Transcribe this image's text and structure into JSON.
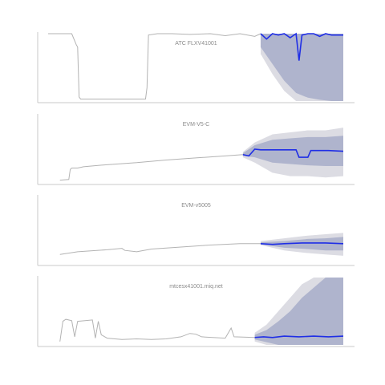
{
  "colors": {
    "history": "#b3b3b3",
    "forecast": "#1f2ee6",
    "band_outer": "#dcdce3",
    "band_inner": "#afb4cd",
    "axis": "#c8c8c8",
    "title": "#8a8a8a"
  },
  "chart_data": [
    {
      "type": "line",
      "title": "ATC FLXV41001",
      "xlabel": "",
      "ylabel": "",
      "x_range": [
        0,
        1
      ],
      "ylim": [
        0,
        1
      ],
      "grid": false,
      "history": [
        [
          0.0,
          1.0
        ],
        [
          0.08,
          1.0
        ],
        [
          0.095,
          0.84
        ],
        [
          0.1,
          0.8
        ],
        [
          0.105,
          0.06
        ],
        [
          0.11,
          0.03
        ],
        [
          0.15,
          0.03
        ],
        [
          0.2,
          0.03
        ],
        [
          0.25,
          0.03
        ],
        [
          0.3,
          0.03
        ],
        [
          0.33,
          0.03
        ],
        [
          0.335,
          0.2
        ],
        [
          0.34,
          0.98
        ],
        [
          0.37,
          1.0
        ],
        [
          0.42,
          1.0
        ],
        [
          0.48,
          0.99
        ],
        [
          0.55,
          1.0
        ],
        [
          0.6,
          0.97
        ],
        [
          0.65,
          1.0
        ],
        [
          0.7,
          0.96
        ],
        [
          0.72,
          1.0
        ]
      ],
      "forecast": [
        [
          0.72,
          1.0
        ],
        [
          0.74,
          0.92
        ],
        [
          0.76,
          1.0
        ],
        [
          0.78,
          0.98
        ],
        [
          0.8,
          1.0
        ],
        [
          0.82,
          0.94
        ],
        [
          0.84,
          1.0
        ],
        [
          0.85,
          0.6
        ],
        [
          0.86,
          0.98
        ],
        [
          0.88,
          1.0
        ],
        [
          0.9,
          1.0
        ],
        [
          0.92,
          0.96
        ],
        [
          0.94,
          1.0
        ],
        [
          0.96,
          0.98
        ],
        [
          1.0,
          0.98
        ]
      ],
      "band_outer": {
        "x": [
          0.72,
          0.76,
          0.8,
          0.84,
          0.88,
          0.92,
          0.96,
          1.0
        ],
        "lower": [
          0.7,
          0.4,
          0.15,
          0.0,
          0.0,
          0.0,
          0.0,
          0.0
        ],
        "upper": [
          1.0,
          1.0,
          1.0,
          1.0,
          1.0,
          1.0,
          1.0,
          1.0
        ]
      },
      "band_inner": {
        "x": [
          0.72,
          0.76,
          0.8,
          0.84,
          0.88,
          0.92,
          0.96,
          1.0
        ],
        "lower": [
          0.8,
          0.55,
          0.3,
          0.12,
          0.05,
          0.02,
          0.0,
          0.0
        ],
        "upper": [
          1.0,
          1.0,
          1.0,
          1.0,
          1.0,
          1.0,
          1.0,
          1.0
        ]
      }
    },
    {
      "type": "line",
      "title": "EVM-V5-C",
      "xlabel": "",
      "ylabel": "",
      "x_range": [
        0,
        1
      ],
      "ylim": [
        0,
        1
      ],
      "grid": false,
      "history": [
        [
          0.04,
          0.04
        ],
        [
          0.07,
          0.05
        ],
        [
          0.075,
          0.2
        ],
        [
          0.08,
          0.22
        ],
        [
          0.1,
          0.22
        ],
        [
          0.12,
          0.24
        ],
        [
          0.2,
          0.27
        ],
        [
          0.3,
          0.3
        ],
        [
          0.4,
          0.34
        ],
        [
          0.5,
          0.37
        ],
        [
          0.6,
          0.4
        ],
        [
          0.66,
          0.42
        ]
      ],
      "forecast": [
        [
          0.66,
          0.42
        ],
        [
          0.68,
          0.4
        ],
        [
          0.7,
          0.5
        ],
        [
          0.72,
          0.49
        ],
        [
          0.8,
          0.49
        ],
        [
          0.84,
          0.49
        ],
        [
          0.85,
          0.38
        ],
        [
          0.88,
          0.38
        ],
        [
          0.89,
          0.48
        ],
        [
          0.95,
          0.48
        ],
        [
          1.0,
          0.47
        ]
      ],
      "band_outer": {
        "x": [
          0.66,
          0.7,
          0.76,
          0.82,
          0.88,
          0.94,
          1.0
        ],
        "lower": [
          0.38,
          0.3,
          0.15,
          0.1,
          0.1,
          0.08,
          0.1
        ],
        "upper": [
          0.46,
          0.6,
          0.72,
          0.75,
          0.78,
          0.78,
          0.82
        ]
      },
      "band_inner": {
        "x": [
          0.66,
          0.7,
          0.76,
          0.82,
          0.88,
          0.94,
          1.0
        ],
        "lower": [
          0.4,
          0.38,
          0.3,
          0.28,
          0.26,
          0.25,
          0.25
        ],
        "upper": [
          0.44,
          0.56,
          0.64,
          0.66,
          0.68,
          0.68,
          0.7
        ]
      }
    },
    {
      "type": "line",
      "title": "EVM-v5005",
      "xlabel": "",
      "ylabel": "",
      "x_range": [
        0,
        1
      ],
      "ylim": [
        0,
        1
      ],
      "grid": false,
      "history": [
        [
          0.04,
          0.14
        ],
        [
          0.1,
          0.18
        ],
        [
          0.2,
          0.21
        ],
        [
          0.25,
          0.23
        ],
        [
          0.26,
          0.2
        ],
        [
          0.3,
          0.18
        ],
        [
          0.35,
          0.22
        ],
        [
          0.45,
          0.25
        ],
        [
          0.55,
          0.28
        ],
        [
          0.65,
          0.3
        ],
        [
          0.72,
          0.3
        ]
      ],
      "forecast": [
        [
          0.72,
          0.3
        ],
        [
          0.76,
          0.29
        ],
        [
          0.8,
          0.3
        ],
        [
          0.86,
          0.31
        ],
        [
          0.9,
          0.31
        ],
        [
          0.94,
          0.31
        ],
        [
          1.0,
          0.3
        ]
      ],
      "band_outer": {
        "x": [
          0.72,
          0.8,
          0.88,
          0.94,
          1.0
        ],
        "lower": [
          0.28,
          0.2,
          0.16,
          0.14,
          0.12
        ],
        "upper": [
          0.34,
          0.38,
          0.42,
          0.44,
          0.46
        ]
      },
      "band_inner": {
        "x": [
          0.72,
          0.8,
          0.88,
          0.94,
          1.0
        ],
        "lower": [
          0.29,
          0.24,
          0.22,
          0.2,
          0.2
        ],
        "upper": [
          0.32,
          0.34,
          0.37,
          0.38,
          0.4
        ]
      }
    },
    {
      "type": "line",
      "title": "mtcesx41001.miq.net",
      "xlabel": "",
      "ylabel": "",
      "x_range": [
        0,
        1
      ],
      "ylim": [
        0,
        1
      ],
      "grid": false,
      "history": [
        [
          0.04,
          0.05
        ],
        [
          0.05,
          0.35
        ],
        [
          0.06,
          0.38
        ],
        [
          0.08,
          0.36
        ],
        [
          0.09,
          0.12
        ],
        [
          0.1,
          0.35
        ],
        [
          0.15,
          0.37
        ],
        [
          0.16,
          0.1
        ],
        [
          0.17,
          0.35
        ],
        [
          0.18,
          0.15
        ],
        [
          0.2,
          0.1
        ],
        [
          0.25,
          0.08
        ],
        [
          0.3,
          0.09
        ],
        [
          0.35,
          0.08
        ],
        [
          0.4,
          0.09
        ],
        [
          0.45,
          0.12
        ],
        [
          0.48,
          0.17
        ],
        [
          0.5,
          0.16
        ],
        [
          0.52,
          0.12
        ],
        [
          0.6,
          0.1
        ],
        [
          0.62,
          0.25
        ],
        [
          0.63,
          0.12
        ],
        [
          0.7,
          0.11
        ]
      ],
      "forecast": [
        [
          0.7,
          0.11
        ],
        [
          0.73,
          0.12
        ],
        [
          0.76,
          0.11
        ],
        [
          0.8,
          0.13
        ],
        [
          0.85,
          0.12
        ],
        [
          0.9,
          0.13
        ],
        [
          0.95,
          0.12
        ],
        [
          1.0,
          0.13
        ]
      ],
      "band_outer": {
        "x": [
          0.7,
          0.74,
          0.78,
          0.82,
          0.86,
          0.9,
          0.94,
          1.0
        ],
        "lower": [
          0.05,
          0.0,
          0.0,
          0.0,
          0.0,
          0.0,
          0.0,
          0.0
        ],
        "upper": [
          0.18,
          0.3,
          0.5,
          0.7,
          0.9,
          1.0,
          1.0,
          1.0
        ]
      },
      "band_inner": {
        "x": [
          0.7,
          0.74,
          0.78,
          0.82,
          0.86,
          0.9,
          0.94,
          1.0
        ],
        "lower": [
          0.08,
          0.04,
          0.0,
          0.0,
          0.0,
          0.0,
          0.0,
          0.0
        ],
        "upper": [
          0.15,
          0.22,
          0.35,
          0.5,
          0.7,
          0.85,
          1.0,
          1.0
        ]
      }
    }
  ]
}
